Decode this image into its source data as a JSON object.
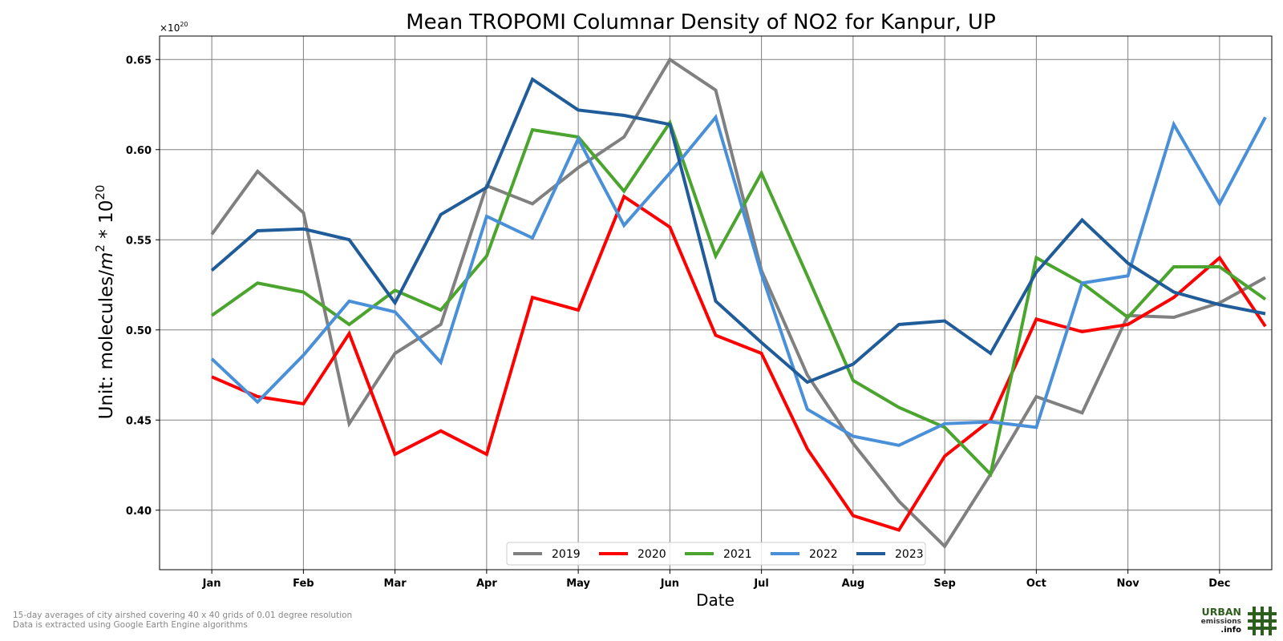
{
  "chart_data": {
    "type": "line",
    "title": "Mean TROPOMI Columnar Density of NO2 for Kanpur, UP",
    "xlabel": "Date",
    "ylabel_main": "Unit: molecules/",
    "ylabel_m": "m",
    "ylabel_exp1": "2",
    "ylabel_mid": " * 10",
    "ylabel_exp2": "20",
    "offset_base": "×10",
    "offset_exp": "20",
    "ylim": [
      0.367,
      0.663
    ],
    "xlim": [
      -0.57,
      11.57
    ],
    "yticks": [
      "0.40",
      "0.45",
      "0.50",
      "0.55",
      "0.60",
      "0.65"
    ],
    "ytick_values": [
      0.4,
      0.45,
      0.5,
      0.55,
      0.6,
      0.65
    ],
    "categories": [
      "Jan",
      "Feb",
      "Mar",
      "Apr",
      "May",
      "Jun",
      "Jul",
      "Aug",
      "Sep",
      "Oct",
      "Nov",
      "Dec"
    ],
    "grid": true,
    "legend_position": "bottom-center",
    "x": [
      0,
      0.5,
      1,
      1.5,
      2,
      2.5,
      3,
      3.5,
      4,
      4.5,
      5,
      5.5,
      6,
      6.5,
      7,
      7.5,
      8,
      8.5,
      9,
      9.5,
      10,
      10.5,
      11,
      11.5
    ],
    "series": [
      {
        "name": "2019",
        "color": "#808080",
        "values": [
          0.553,
          0.588,
          0.565,
          0.448,
          0.487,
          0.503,
          0.58,
          0.57,
          0.59,
          0.607,
          0.65,
          0.633,
          0.533,
          0.475,
          0.437,
          0.405,
          0.38,
          0.42,
          0.463,
          0.454,
          0.508,
          0.507,
          0.515,
          0.529
        ]
      },
      {
        "name": "2020",
        "color": "#ff0000",
        "values": [
          0.474,
          0.463,
          0.459,
          0.498,
          0.431,
          0.444,
          0.431,
          0.518,
          0.511,
          0.574,
          0.557,
          0.497,
          0.487,
          0.434,
          0.397,
          0.389,
          0.43,
          0.45,
          0.506,
          0.499,
          0.503,
          0.518,
          0.54,
          0.502
        ]
      },
      {
        "name": "2021",
        "color": "#4aa42d",
        "values": [
          0.508,
          0.526,
          0.521,
          0.503,
          0.522,
          0.511,
          0.541,
          0.611,
          0.607,
          0.577,
          0.615,
          0.541,
          0.587,
          0.53,
          0.472,
          0.457,
          0.446,
          0.42,
          0.54,
          0.526,
          0.507,
          0.535,
          0.535,
          0.517
        ]
      },
      {
        "name": "2022",
        "color": "#4a90d9",
        "values": [
          0.484,
          0.46,
          0.486,
          0.516,
          0.51,
          0.482,
          0.563,
          0.551,
          0.606,
          0.558,
          0.587,
          0.618,
          0.531,
          0.456,
          0.441,
          0.436,
          0.448,
          0.449,
          0.446,
          0.526,
          0.53,
          0.614,
          0.57,
          0.618
        ]
      },
      {
        "name": "2023",
        "color": "#1f5c99",
        "values": [
          0.533,
          0.555,
          0.556,
          0.55,
          0.515,
          0.564,
          0.579,
          0.639,
          0.622,
          0.619,
          0.614,
          0.516,
          0.493,
          0.471,
          0.481,
          0.503,
          0.505,
          0.487,
          0.532,
          0.561,
          0.537,
          0.521,
          0.514,
          0.509
        ]
      }
    ]
  },
  "footnotes": {
    "line1": "15-day averages of city airshed covering 40 x 40 grids of 0.01 degree resolution",
    "line2": "Data is extracted using Google Earth Engine algorithms"
  },
  "logo": {
    "line1": "URBAN",
    "line2": "emissions",
    "line3": ".info",
    "color": "#2e5e1e"
  }
}
